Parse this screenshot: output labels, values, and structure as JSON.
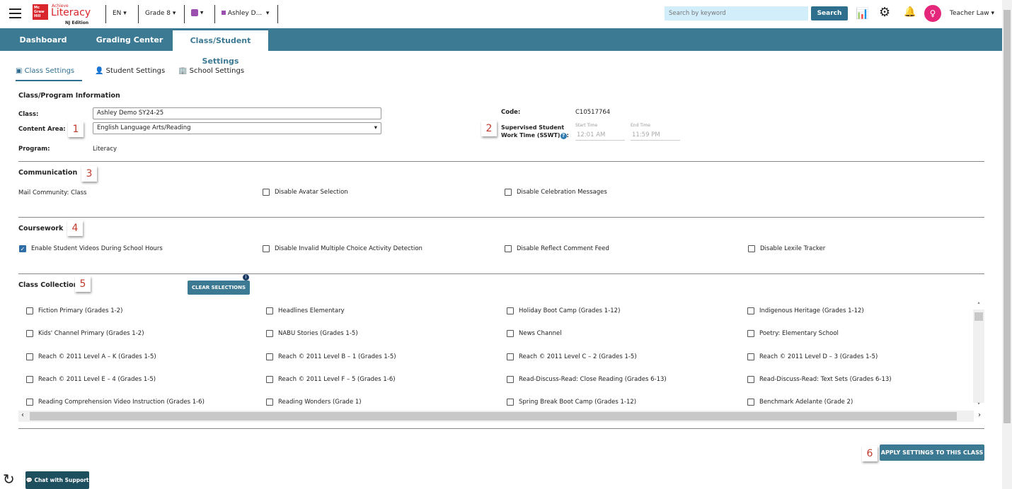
{
  "header": {
    "brand_top": "Mc Graw Hill",
    "brand_achieve": "Achieve",
    "brand_name": "Literacy",
    "brand_edition": "NJ Edition",
    "language": "EN",
    "grade": "Grade 8",
    "class_name": "Ashley D...",
    "search_placeholder": "Search by keyword",
    "search_button": "Search",
    "user": "Teacher Law"
  },
  "nav": {
    "tabs": [
      "Dashboard",
      "Grading Center",
      "Class/Student Settings"
    ],
    "active": 2
  },
  "subtabs": [
    "Class Settings",
    "Student Settings",
    "School Settings"
  ],
  "class_info": {
    "title": "Class/Program Information",
    "class_label": "Class:",
    "class_value": "Ashley Demo SY24-25",
    "content_area_label": "Content Area:",
    "content_area_value": "English Language Arts/Reading",
    "program_label": "Program:",
    "program_value": "Literacy",
    "code_label": "Code:",
    "code_value": "C10517764",
    "sswt_label_1": "Supervised Student",
    "sswt_label_2": "Work Time (SSWT)",
    "sswt_colon": ":",
    "start_label": "Start Time",
    "start_value": "12:01 AM",
    "end_label": "End Time",
    "end_value": "11:59 PM"
  },
  "communication": {
    "title": "Communication",
    "mail": "Mail Community: Class",
    "items": [
      {
        "label": "Disable Avatar Selection",
        "checked": false
      },
      {
        "label": "Disable Celebration Messages",
        "checked": false
      }
    ]
  },
  "coursework": {
    "title": "Coursework",
    "items": [
      {
        "label": "Enable Student Videos During School Hours",
        "checked": true
      },
      {
        "label": "Disable Invalid Multiple Choice Activity Detection",
        "checked": false
      },
      {
        "label": "Disable Reflect Comment Feed",
        "checked": false
      },
      {
        "label": "Disable Lexile Tracker",
        "checked": false
      }
    ]
  },
  "collections": {
    "title": "Class Collections",
    "clear_button": "CLEAR SELECTIONS",
    "items": [
      "Fiction Primary (Grades 1-2)",
      "Headlines Elementary",
      "Holiday Boot Camp (Grades 1-12)",
      "Indigenous Heritage (Grades 1-12)",
      "Kids' Channel Primary (Grades 1-2)",
      "NABU Stories (Grades 1-5)",
      "News Channel",
      "Poetry: Elementary School",
      "Reach © 2011 Level A – K (Grades 1-5)",
      "Reach © 2011 Level B – 1 (Grades 1-5)",
      "Reach © 2011 Level C – 2 (Grades 1-5)",
      "Reach © 2011 Level D – 3 (Grades 1-5)",
      "Reach © 2011 Level E – 4 (Grades 1-5)",
      "Reach © 2011 Level F – 5 (Grades 1-6)",
      "Read-Discuss-Read: Close Reading (Grades 6-13)",
      "Read-Discuss-Read: Text Sets (Grades 6-13)",
      "Reading Comprehension Video Instruction (Grades 1-6)",
      "Reading Wonders (Grade 1)",
      "Spring Break Boot Camp (Grades 1-12)",
      "Benchmark Adelante (Grade 2)"
    ]
  },
  "apply_button": "APPLY SETTINGS TO THIS CLASS",
  "chat_button": "Chat with Support",
  "annotations": [
    "1",
    "2",
    "3",
    "4",
    "5",
    "6"
  ],
  "colors": {
    "nav": "#3c7a94",
    "avatar": "#e4277a",
    "class_color": "#9b4fae",
    "checkbox": "#2f6ea5"
  }
}
